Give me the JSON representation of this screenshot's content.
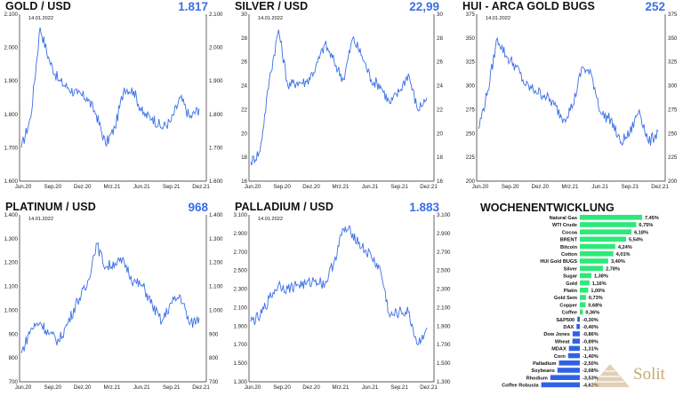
{
  "colors": {
    "line": "#3b6fe8",
    "up": "#2ee87a",
    "down": "#2f63e6",
    "value": "#3b6fe8"
  },
  "panels": [
    {
      "key": "gold",
      "title": "GOLD / USD",
      "value": "1.817",
      "date": "14.01.2022",
      "yticks": [
        "2.100",
        "2.000",
        "1.900",
        "1.800",
        "1.700",
        "1.600"
      ],
      "ymin": 1600,
      "ymax": 2100,
      "xticks": [
        "Jun.20",
        "Sep.20",
        "Dez.20",
        "Mrz.21",
        "Jun.21",
        "Sep.21",
        "Dez.21"
      ],
      "chart_data": {
        "type": "line",
        "ylim": [
          1600,
          2100
        ],
        "x": [
          "Jun.20",
          "Jul.20",
          "Aug.20",
          "Sep.20",
          "Okt.20",
          "Nov.20",
          "Dez.20",
          "Jan.21",
          "Feb.21",
          "Mrz.21",
          "Apr.21",
          "Mai.21",
          "Jun.21",
          "Jul.21",
          "Aug.21",
          "Sep.21",
          "Okt.21",
          "Nov.21",
          "Dez.21",
          "Jan.22"
        ],
        "values": [
          1700,
          1790,
          2060,
          1960,
          1900,
          1880,
          1860,
          1850,
          1800,
          1710,
          1760,
          1880,
          1870,
          1800,
          1790,
          1760,
          1780,
          1850,
          1790,
          1817
        ]
      }
    },
    {
      "key": "silver",
      "title": "SILVER / USD",
      "value": "22,99",
      "date": "14.01.2022",
      "yticks": [
        "30",
        "28",
        "26",
        "24",
        "22",
        "20",
        "18",
        "16"
      ],
      "ymin": 16,
      "ymax": 30,
      "xticks": [
        "Jun.20",
        "Sep.20",
        "Dez.20",
        "Mrz.21",
        "Jun.21",
        "Sep.21",
        "Dez.21"
      ],
      "chart_data": {
        "type": "line",
        "ylim": [
          16,
          30
        ],
        "x": [
          "Jun.20",
          "Jul.20",
          "Aug.20",
          "Sep.20",
          "Okt.20",
          "Nov.20",
          "Dez.20",
          "Jan.21",
          "Feb.21",
          "Mrz.21",
          "Apr.21",
          "Mai.21",
          "Jun.21",
          "Jul.21",
          "Aug.21",
          "Sep.21",
          "Okt.21",
          "Nov.21",
          "Dez.21",
          "Jan.22"
        ],
        "values": [
          17.6,
          18.5,
          24.5,
          28.7,
          24,
          24.3,
          24.3,
          25.5,
          27.5,
          26,
          24.5,
          28,
          26.5,
          24.5,
          24,
          22.5,
          23.5,
          25,
          22,
          22.99
        ]
      }
    },
    {
      "key": "hui",
      "title": "HUI - ARCA GOLD BUGS",
      "value": "252",
      "date": "14.01.2022",
      "yticks": [
        "375",
        "350",
        "325",
        "300",
        "275",
        "250",
        "225",
        "200"
      ],
      "ymin": 200,
      "ymax": 375,
      "xticks": [
        "Jun.20",
        "Sep.20",
        "Dez.20",
        "Mrz.21",
        "Jun.21",
        "Sep.21",
        "Dez.21"
      ],
      "chart_data": {
        "type": "line",
        "ylim": [
          200,
          375
        ],
        "x": [
          "Jun.20",
          "Jul.20",
          "Aug.20",
          "Sep.20",
          "Okt.20",
          "Nov.20",
          "Dez.20",
          "Jan.21",
          "Feb.21",
          "Mrz.21",
          "Apr.21",
          "Mai.21",
          "Jun.21",
          "Jul.21",
          "Aug.21",
          "Sep.21",
          "Okt.21",
          "Nov.21",
          "Dez.21",
          "Jan.22"
        ],
        "values": [
          255,
          295,
          350,
          330,
          320,
          300,
          295,
          290,
          280,
          265,
          280,
          320,
          310,
          270,
          265,
          240,
          250,
          275,
          240,
          252
        ]
      }
    },
    {
      "key": "platinum",
      "title": "PLATINUM / USD",
      "value": "968",
      "date": "14.01.2022",
      "yticks": [
        "1.400",
        "1.300",
        "1.200",
        "1.100",
        "1.000",
        "900",
        "800",
        "700"
      ],
      "ymin": 700,
      "ymax": 1400,
      "xticks": [
        "Jun.20",
        "Sep.20",
        "Dez.20",
        "Mrz.21",
        "Jun.21",
        "Sep.21",
        "Dez.21"
      ],
      "chart_data": {
        "type": "line",
        "ylim": [
          700,
          1400
        ],
        "x": [
          "Jun.20",
          "Jul.20",
          "Aug.20",
          "Sep.20",
          "Okt.20",
          "Nov.20",
          "Dez.20",
          "Jan.21",
          "Feb.21",
          "Mrz.21",
          "Apr.21",
          "Mai.21",
          "Jun.21",
          "Jul.21",
          "Aug.21",
          "Sep.21",
          "Okt.21",
          "Nov.21",
          "Dez.21",
          "Jan.22"
        ],
        "values": [
          820,
          920,
          950,
          900,
          870,
          950,
          1040,
          1100,
          1280,
          1180,
          1200,
          1200,
          1120,
          1100,
          1020,
          950,
          1030,
          1060,
          940,
          968
        ]
      }
    },
    {
      "key": "palladium",
      "title": "PALLADIUM / USD",
      "value": "1.883",
      "date": "14.01.2022",
      "yticks": [
        "3.100",
        "2.900",
        "2.700",
        "2.500",
        "2.300",
        "2.100",
        "1.900",
        "1.700",
        "1.500",
        "1.300"
      ],
      "ymin": 1300,
      "ymax": 3100,
      "xticks": [
        "Jun.20",
        "Sep.20",
        "Dez.20",
        "Mrz.21",
        "Jun.21",
        "Sep.21",
        "Dez.21"
      ],
      "chart_data": {
        "type": "line",
        "ylim": [
          1300,
          3100
        ],
        "x": [
          "Jun.20",
          "Jul.20",
          "Aug.20",
          "Sep.20",
          "Okt.20",
          "Nov.20",
          "Dez.20",
          "Jan.21",
          "Feb.21",
          "Mrz.21",
          "Apr.21",
          "Mai.21",
          "Jun.21",
          "Jul.21",
          "Aug.21",
          "Sep.21",
          "Okt.21",
          "Nov.21",
          "Dez.21",
          "Jan.22"
        ],
        "values": [
          1950,
          2000,
          2200,
          2350,
          2300,
          2350,
          2350,
          2400,
          2350,
          2600,
          2950,
          2900,
          2750,
          2650,
          2500,
          2000,
          2050,
          2050,
          1700,
          1883
        ]
      }
    }
  ],
  "weekly": {
    "title": "WOCHENENTWICKLUNG",
    "chart_data": {
      "type": "bar",
      "categories": [
        "Natural Gas",
        "WTI Crude",
        "Cocoa",
        "BRENT",
        "Bitcoin",
        "Cotton",
        "HUI Gold BUGS",
        "Silver",
        "Sugar",
        "Gold",
        "Platin",
        "Gold Sem",
        "Copper",
        "Coffee",
        "S&P500",
        "DAX",
        "Dow Jones",
        "Wheat",
        "MDAX",
        "Corn",
        "Palladium",
        "Soybeans",
        "Rhodium",
        "Coffee Robusta"
      ],
      "values": [
        7.45,
        6.75,
        6.18,
        5.54,
        4.24,
        4.01,
        3.4,
        2.78,
        1.38,
        1.16,
        1.0,
        0.73,
        0.68,
        0.36,
        -0.3,
        -0.4,
        -0.86,
        -0.89,
        -1.31,
        -1.4,
        -2.5,
        -2.68,
        -3.53,
        -4.62
      ],
      "labels": [
        "7,45%",
        "6,75%",
        "6,18%",
        "5,54%",
        "4,24%",
        "4,01%",
        "3,40%",
        "2,78%",
        "1,38%",
        "1,16%",
        "1,00%",
        "0,73%",
        "0,68%",
        "0,36%",
        "-0,30%",
        "-0,40%",
        "-0,86%",
        "-0,89%",
        "-1,31%",
        "-1,40%",
        "-2,50%",
        "-2,68%",
        "-3,53%",
        "-4,62%"
      ]
    }
  },
  "logo": {
    "text": "Solit"
  }
}
